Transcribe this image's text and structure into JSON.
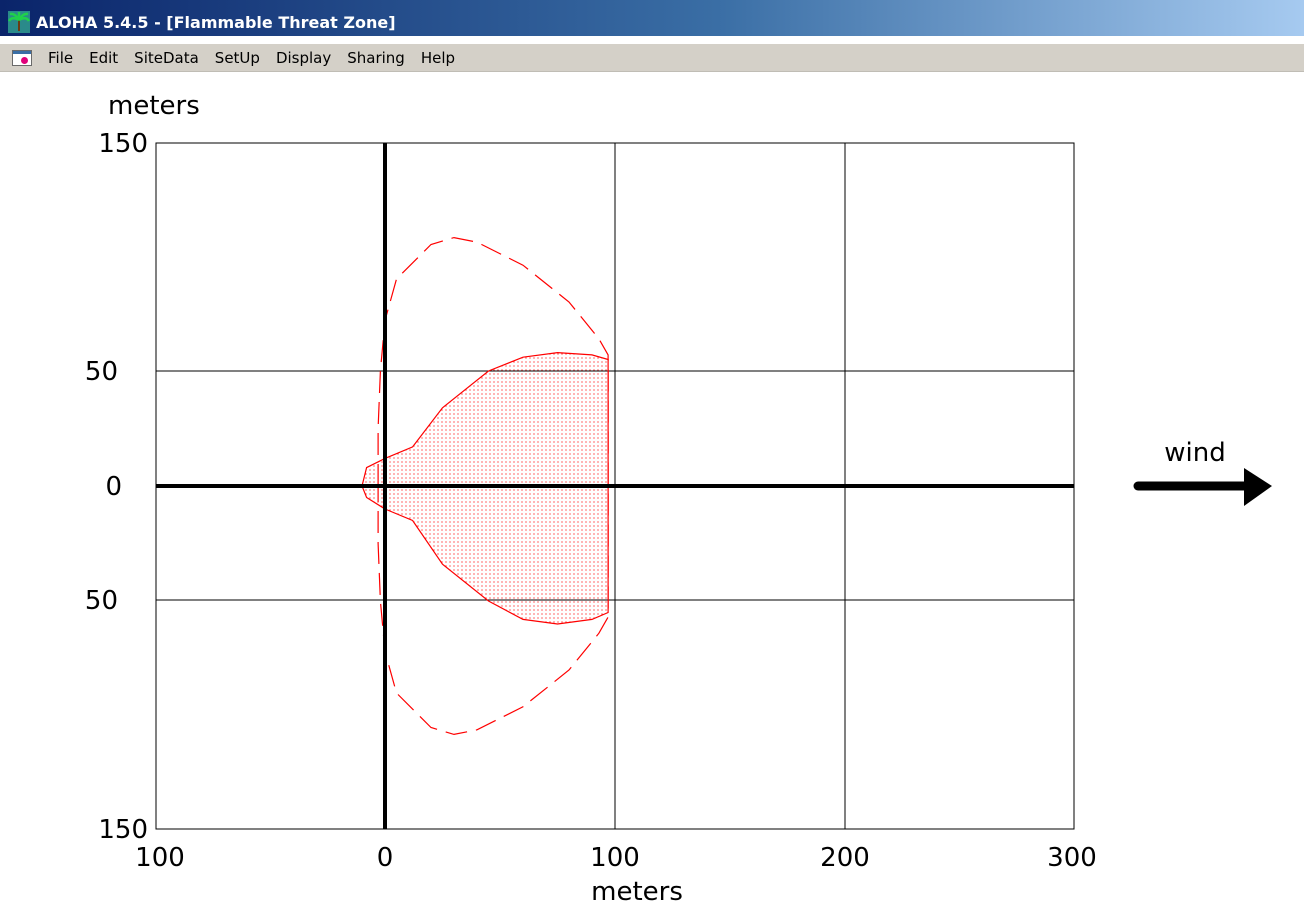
{
  "window": {
    "title": "ALOHA 5.4.5 - [Flammable Threat Zone]",
    "icon": "palm-tree-icon"
  },
  "menubar": {
    "doc_icon": "document-icon",
    "items": [
      {
        "label": "File"
      },
      {
        "label": "Edit"
      },
      {
        "label": "SiteData"
      },
      {
        "label": "SetUp"
      },
      {
        "label": "Display"
      },
      {
        "label": "Sharing"
      },
      {
        "label": "Help"
      }
    ]
  },
  "plot": {
    "y_unit_label": "meters",
    "x_unit_label": "meters",
    "y_tick_labels": [
      "150",
      "50",
      "0",
      "50",
      "150"
    ],
    "x_tick_labels": [
      "100",
      "0",
      "100",
      "200",
      "300"
    ],
    "wind_label": "wind",
    "wind_icon": "arrow-right-icon",
    "threat_color": "#ff0000"
  },
  "chart_data": {
    "type": "area",
    "x_range": [
      -100,
      300
    ],
    "y_range": [
      -150,
      150
    ],
    "x_ticks": [
      -100,
      0,
      100,
      200,
      300
    ],
    "y_ticks": [
      150,
      50,
      0,
      -50,
      -150
    ],
    "grid": true,
    "wind_direction": "east",
    "zones": [
      {
        "style": "dashed",
        "fill": "none",
        "points": [
          [
            -3,
            0
          ],
          [
            -3,
            25
          ],
          [
            -2,
            50
          ],
          [
            0,
            72
          ],
          [
            5,
            90
          ],
          [
            20,
            105
          ],
          [
            30,
            108
          ],
          [
            40,
            106
          ],
          [
            60,
            96
          ],
          [
            80,
            80
          ],
          [
            93,
            64
          ],
          [
            97,
            57
          ],
          [
            97,
            -57
          ],
          [
            93,
            -64
          ],
          [
            80,
            -80
          ],
          [
            60,
            -96
          ],
          [
            40,
            -106
          ],
          [
            30,
            -108
          ],
          [
            20,
            -105
          ],
          [
            5,
            -90
          ],
          [
            0,
            -72
          ],
          [
            -2,
            -50
          ],
          [
            -3,
            -25
          ],
          [
            -3,
            0
          ]
        ]
      },
      {
        "style": "solid",
        "fill": "dotted",
        "points": [
          [
            -10,
            0
          ],
          [
            -8,
            8
          ],
          [
            0,
            12
          ],
          [
            12,
            17
          ],
          [
            25,
            34
          ],
          [
            45,
            50
          ],
          [
            60,
            56
          ],
          [
            75,
            58
          ],
          [
            90,
            57
          ],
          [
            97,
            55
          ],
          [
            97,
            -55
          ],
          [
            90,
            -58
          ],
          [
            75,
            -60
          ],
          [
            60,
            -58
          ],
          [
            45,
            -50
          ],
          [
            25,
            -34
          ],
          [
            12,
            -15
          ],
          [
            0,
            -10
          ],
          [
            -8,
            -5
          ],
          [
            -10,
            0
          ]
        ]
      }
    ]
  }
}
